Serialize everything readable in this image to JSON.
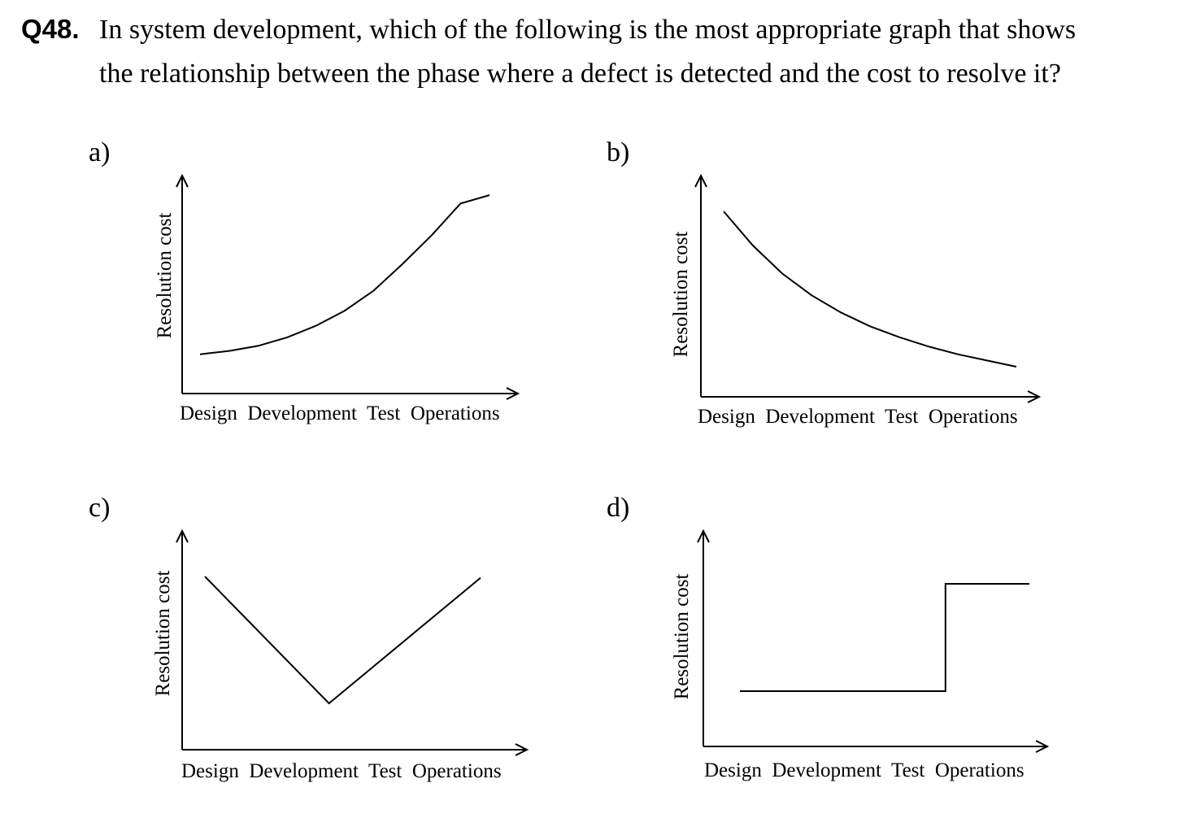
{
  "question": {
    "number": "Q48.",
    "line1": "In system development, which of the following is the most appropriate graph that shows",
    "line2": "the relationship between the phase where a defect is detected and the cost to resolve it?"
  },
  "options": [
    {
      "letter": "a)",
      "ylabel": "Resolution cost",
      "xlabel": "Design  Development  Test  Operations"
    },
    {
      "letter": "b)",
      "ylabel": "Resolution cost",
      "xlabel": "Design  Development  Test  Operations"
    },
    {
      "letter": "c)",
      "ylabel": "Resolution cost",
      "xlabel": "Design  Development  Test  Operations"
    },
    {
      "letter": "d)",
      "ylabel": "Resolution cost",
      "xlabel": "Design  Development  Test  Operations"
    }
  ],
  "chart_data": [
    {
      "type": "line",
      "title": "",
      "xlabel": "Design  Development  Test  Operations",
      "ylabel": "Resolution cost",
      "shape": "rising-exponential",
      "x": [
        0,
        1,
        2,
        3,
        4,
        5,
        6,
        7,
        8,
        9,
        10
      ],
      "y": [
        0.05,
        0.07,
        0.1,
        0.15,
        0.22,
        0.31,
        0.43,
        0.59,
        0.76,
        0.95,
        1.0
      ]
    },
    {
      "type": "line",
      "title": "",
      "xlabel": "Design  Development  Test  Operations",
      "ylabel": "Resolution cost",
      "shape": "falling-decay",
      "x": [
        0,
        1,
        2,
        3,
        4,
        5,
        6,
        7,
        8,
        9,
        10
      ],
      "y": [
        1.0,
        0.78,
        0.6,
        0.46,
        0.35,
        0.26,
        0.19,
        0.13,
        0.08,
        0.04,
        0.0
      ]
    },
    {
      "type": "line",
      "title": "",
      "xlabel": "Design  Development  Test  Operations",
      "ylabel": "Resolution cost",
      "shape": "v-shape",
      "x": [
        0,
        0.45,
        1
      ],
      "y": [
        1.0,
        0.0,
        0.99
      ]
    },
    {
      "type": "line",
      "title": "",
      "xlabel": "Design  Development  Test  Operations",
      "ylabel": "Resolution cost",
      "shape": "step-up",
      "x": [
        0,
        0.71,
        0.71,
        1
      ],
      "y": [
        0.0,
        0.0,
        1.0,
        1.0
      ]
    }
  ]
}
